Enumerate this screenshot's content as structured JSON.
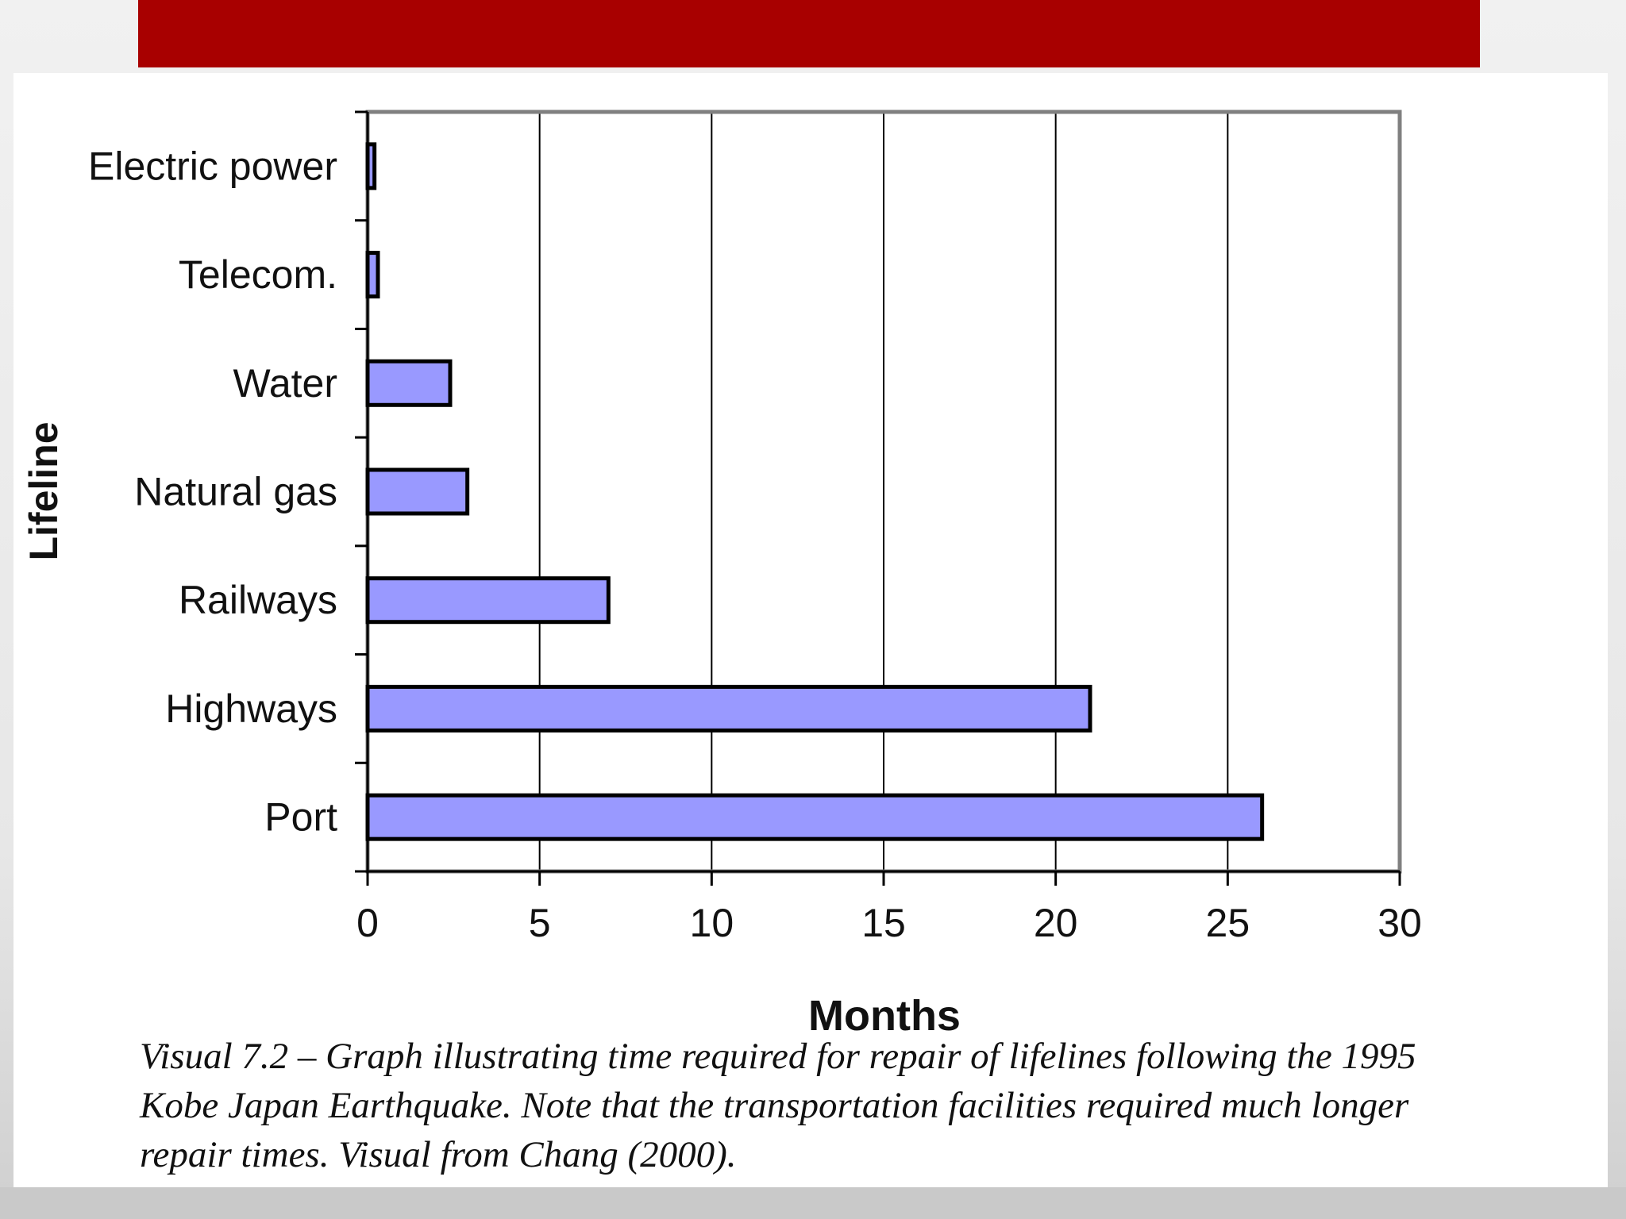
{
  "chart_data": {
    "type": "bar",
    "orientation": "horizontal",
    "categories": [
      "Electric power",
      "Telecom.",
      "Water",
      "Natural gas",
      "Railways",
      "Highways",
      "Port"
    ],
    "values": [
      0.2,
      0.3,
      2.4,
      2.9,
      7,
      21,
      26
    ],
    "xlabel": "Months",
    "ylabel": "Lifeline",
    "xlim": [
      0,
      30
    ],
    "xticks": [
      "0",
      "5",
      "10",
      "15",
      "20",
      "25",
      "30"
    ],
    "grid": "vertical",
    "legend": "none",
    "bar_color": "#9999ff",
    "bar_edge_color": "#000000"
  },
  "caption": {
    "line1": "Visual 7.2 – Graph illustrating time required for repair of lifelines following the 1995",
    "line2": "Kobe Japan Earthquake. Note that the transportation facilities required much longer",
    "line3": "repair times. Visual from Chang (2000)."
  },
  "colors": {
    "banner": "#a80000",
    "plot_border": "#808080",
    "gridline": "#000000"
  }
}
